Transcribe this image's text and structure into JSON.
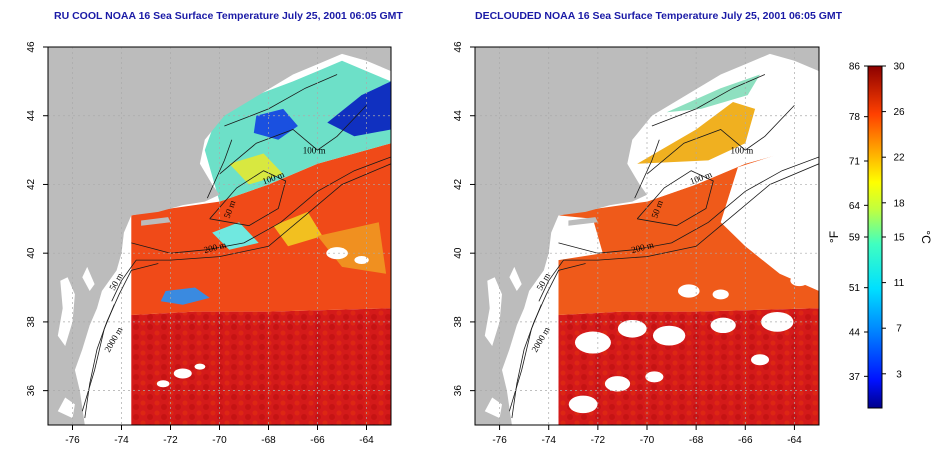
{
  "panels": [
    {
      "title": "RU COOL NOAA 16 Sea Surface Temperature July 25, 2001 06:05 GMT",
      "variant": "raw",
      "contour_labels": [
        "100 m",
        "100 m",
        "50 m",
        "200 m",
        "50 m",
        "2000 m"
      ]
    },
    {
      "title": "DECLOUDED NOAA 16 Sea Surface Temperature July 25, 2001 06:05 GMT",
      "variant": "declouded",
      "contour_labels": [
        "100 m",
        "100 m",
        "50 m",
        "200 m",
        "50 m",
        "2000 m"
      ]
    }
  ],
  "axes": {
    "x_ticks": [
      "-76",
      "-74",
      "-72",
      "-70",
      "-68",
      "-66",
      "-64"
    ],
    "y_ticks": [
      "46",
      "44",
      "42",
      "40",
      "38",
      "36"
    ],
    "x_values": [
      -76,
      -74,
      -72,
      -70,
      -68,
      -66,
      -64
    ],
    "y_values": [
      46,
      44,
      42,
      40,
      38,
      36
    ],
    "lon_range": [
      -77,
      -63
    ],
    "lat_range": [
      35,
      46
    ]
  },
  "colorbar": {
    "unit_left": "°F",
    "unit_right": "°C",
    "f_ticks": [
      "86",
      "78",
      "71",
      "64",
      "59",
      "51",
      "44",
      "37"
    ],
    "c_ticks": [
      "30",
      "26",
      "22",
      "18",
      "15",
      "11",
      "7",
      "3"
    ],
    "c_range": [
      0,
      30
    ],
    "c_values": [
      30,
      26,
      22,
      18,
      15,
      11,
      7,
      3
    ],
    "f_values": [
      86,
      78,
      71,
      64,
      59,
      51,
      44,
      37
    ]
  },
  "colors": {
    "land": "#bcbcbc",
    "cloud": "#ffffff",
    "ocean_warm": "#d01818",
    "contour": "#000000",
    "title": "#1a1aa6",
    "grid": "#aaaaaa"
  }
}
